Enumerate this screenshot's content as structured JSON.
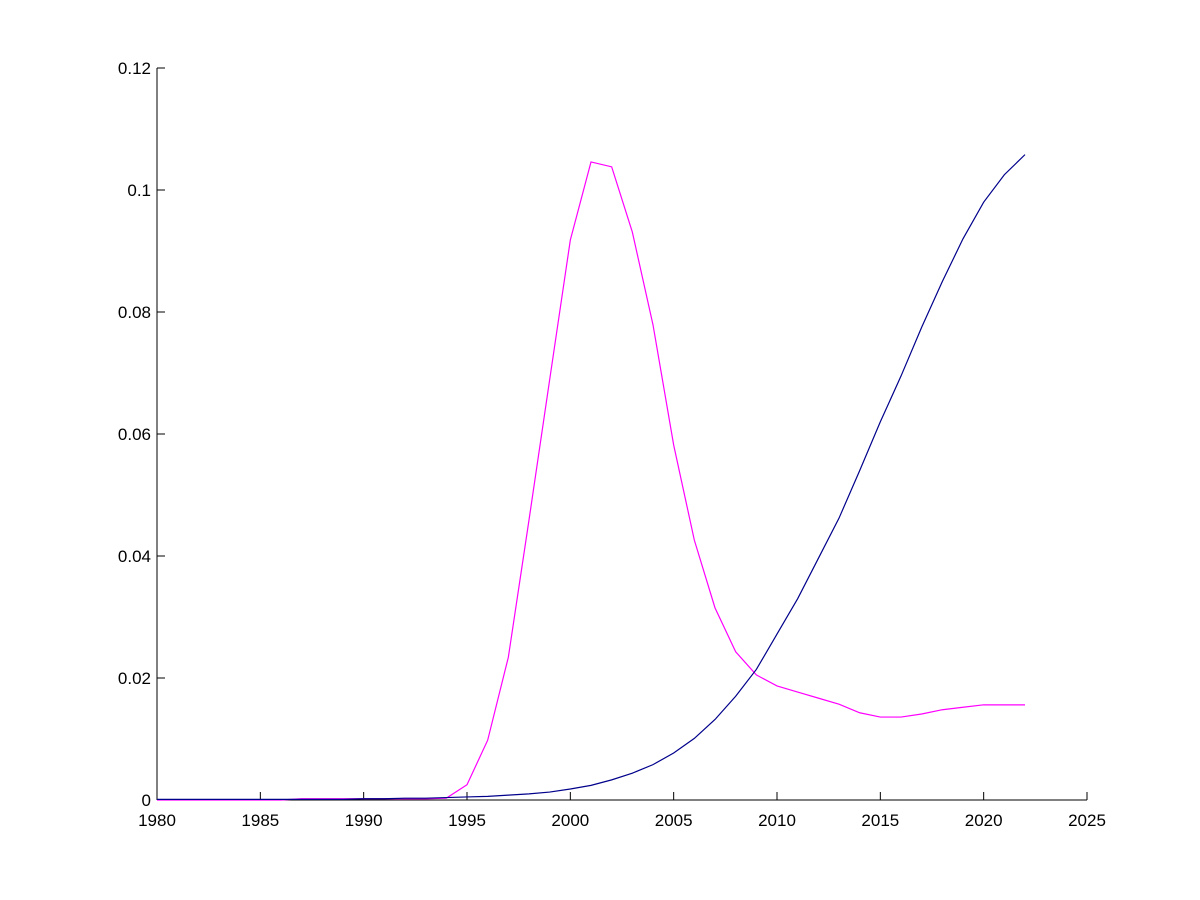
{
  "chart_data": {
    "type": "line",
    "x": [
      1980,
      1981,
      1982,
      1983,
      1984,
      1985,
      1986,
      1987,
      1988,
      1989,
      1990,
      1991,
      1992,
      1993,
      1994,
      1995,
      1996,
      1997,
      1998,
      1999,
      2000,
      2001,
      2002,
      2003,
      2004,
      2005,
      2006,
      2007,
      2008,
      2009,
      2010,
      2011,
      2012,
      2013,
      2014,
      2015,
      2016,
      2017,
      2018,
      2019,
      2020,
      2021,
      2022
    ],
    "series": [
      {
        "color": "#ff00ff",
        "values": [
          0,
          0,
          0,
          0,
          0,
          0,
          0,
          0.0002,
          0.0002,
          0.0002,
          0.0002,
          0.0002,
          0.0002,
          0.0002,
          0.0003,
          0.0025,
          0.0098,
          0.0234,
          0.0459,
          0.0689,
          0.0918,
          0.1046,
          0.1038,
          0.0931,
          0.0779,
          0.0582,
          0.0426,
          0.0315,
          0.0243,
          0.0205,
          0.0187,
          0.0177,
          0.0167,
          0.0157,
          0.0143,
          0.0136,
          0.0136,
          0.0141,
          0.0148,
          0.0152,
          0.0156,
          0.0156,
          0.0156
        ]
      },
      {
        "color": "#00008b",
        "values": [
          0.0001,
          0.0001,
          0.0001,
          0.0001,
          0.0001,
          0.0001,
          0.0001,
          0.0001,
          0.0001,
          0.0001,
          0.0002,
          0.0002,
          0.0003,
          0.0003,
          0.0004,
          0.0005,
          0.0006,
          0.0008,
          0.001,
          0.0013,
          0.0018,
          0.0024,
          0.0033,
          0.0044,
          0.0058,
          0.0077,
          0.0101,
          0.0132,
          0.017,
          0.0214,
          0.0272,
          0.033,
          0.0396,
          0.0462,
          0.054,
          0.062,
          0.0695,
          0.0775,
          0.085,
          0.092,
          0.098,
          0.1025,
          0.1058
        ]
      }
    ],
    "xlim": [
      1980,
      2025
    ],
    "xticks": [
      1980,
      1985,
      1990,
      1995,
      2000,
      2005,
      2010,
      2015,
      2020,
      2025
    ],
    "ylim": [
      0,
      0.12
    ],
    "yticks": [
      0,
      0.02,
      0.04,
      0.06,
      0.08,
      0.1,
      0.12
    ]
  }
}
